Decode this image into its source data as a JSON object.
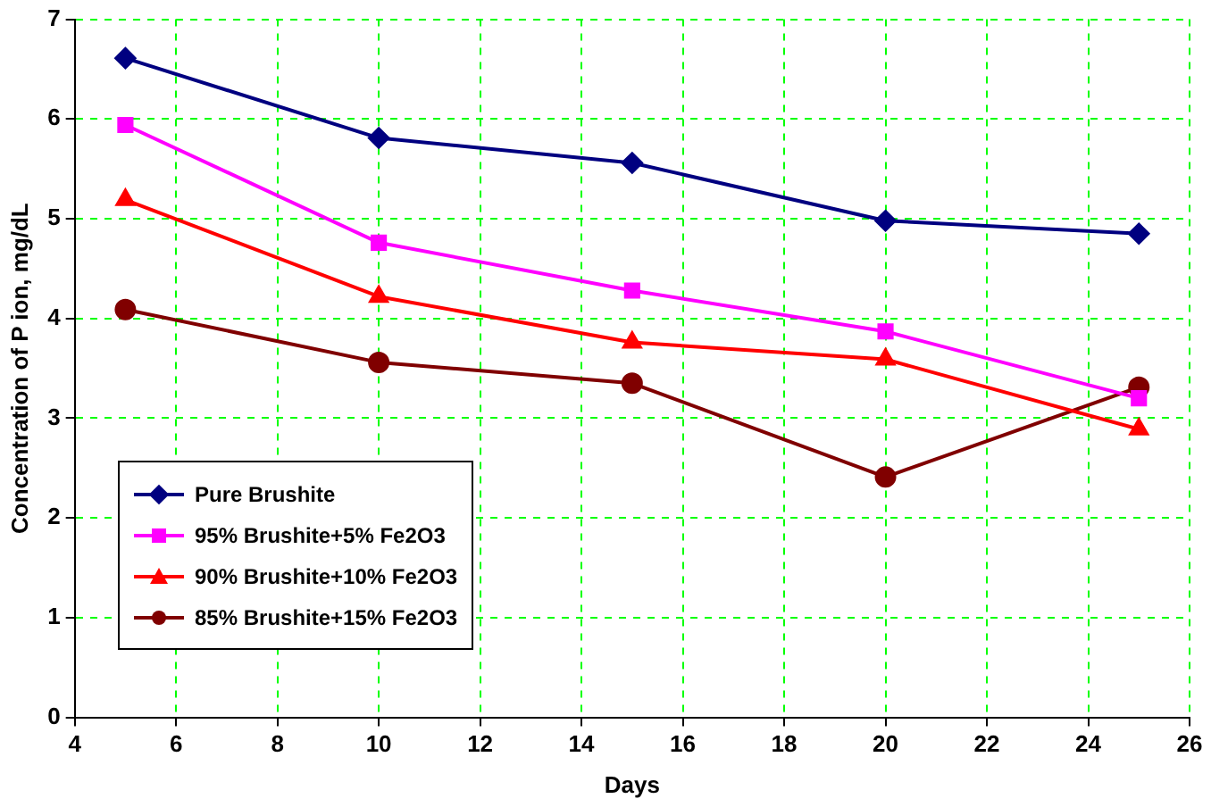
{
  "chart_data": {
    "type": "line",
    "xlabel": "Days",
    "ylabel": "Concentration of P ion, mg/dL",
    "x": [
      5,
      10,
      15,
      20,
      25
    ],
    "xlim": [
      4,
      26
    ],
    "xticks": [
      4,
      6,
      8,
      10,
      12,
      14,
      16,
      18,
      20,
      22,
      24,
      26
    ],
    "ylim": [
      0,
      7
    ],
    "yticks": [
      0,
      1,
      2,
      3,
      4,
      5,
      6,
      7
    ],
    "grid": true,
    "legend": "bottom left",
    "line_style": "solid",
    "series": [
      {
        "name": "Pure Brushite",
        "color": "#000080",
        "marker": "diamond",
        "values": [
          6.61,
          5.81,
          5.56,
          4.98,
          4.85
        ]
      },
      {
        "name": "95% Brushite+5% Fe2O3",
        "color": "#ff00ff",
        "marker": "square",
        "values": [
          5.94,
          4.76,
          4.28,
          3.87,
          3.2
        ]
      },
      {
        "name": "90% Brushite+10% Fe2O3",
        "color": "#ff0000",
        "marker": "triangle",
        "values": [
          5.19,
          4.22,
          3.76,
          3.59,
          2.89
        ]
      },
      {
        "name": "85% Brushite+15% Fe2O3",
        "color": "#800000",
        "marker": "circle",
        "values": [
          4.09,
          3.56,
          3.35,
          2.41,
          3.31
        ]
      }
    ]
  }
}
